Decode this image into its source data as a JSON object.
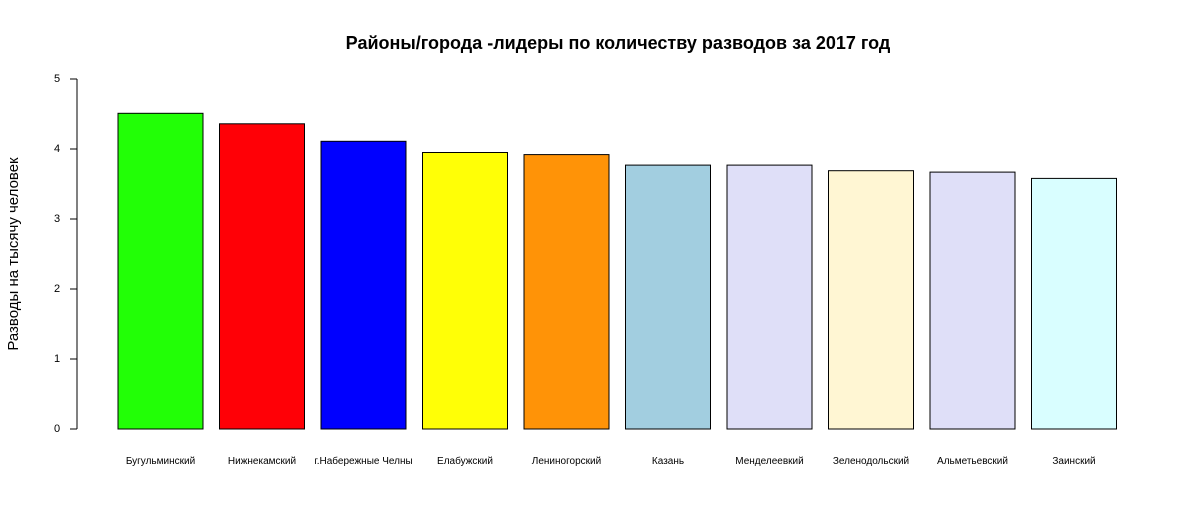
{
  "chart_data": {
    "type": "bar",
    "title": "Районы/города -лидеры по количеству разводов за 2017 год",
    "xlabel": "",
    "ylabel": "Разводы на тысячу человек",
    "ylim": [
      0,
      5
    ],
    "yticks": [
      "0",
      "1",
      "2",
      "3",
      "4",
      "5"
    ],
    "grid": false,
    "legend": "none",
    "categories": [
      "Бугульминский",
      "Нижнекамский",
      "г.Набережные Челны",
      "Елабужский",
      "Лениногорский",
      "Казань",
      "Менделеевкий",
      "Зеленодольский",
      "Альметьевский",
      "Заинский"
    ],
    "values": [
      4.51,
      4.36,
      4.11,
      3.95,
      3.92,
      3.77,
      3.77,
      3.69,
      3.67,
      3.58
    ],
    "colors": [
      "#22ff06",
      "#ff0006",
      "#0000ff",
      "#ffff06",
      "#ff9307",
      "#a2cee0",
      "#dfdff8",
      "#fff6d3",
      "#dfdff8",
      "#d9feff"
    ]
  }
}
